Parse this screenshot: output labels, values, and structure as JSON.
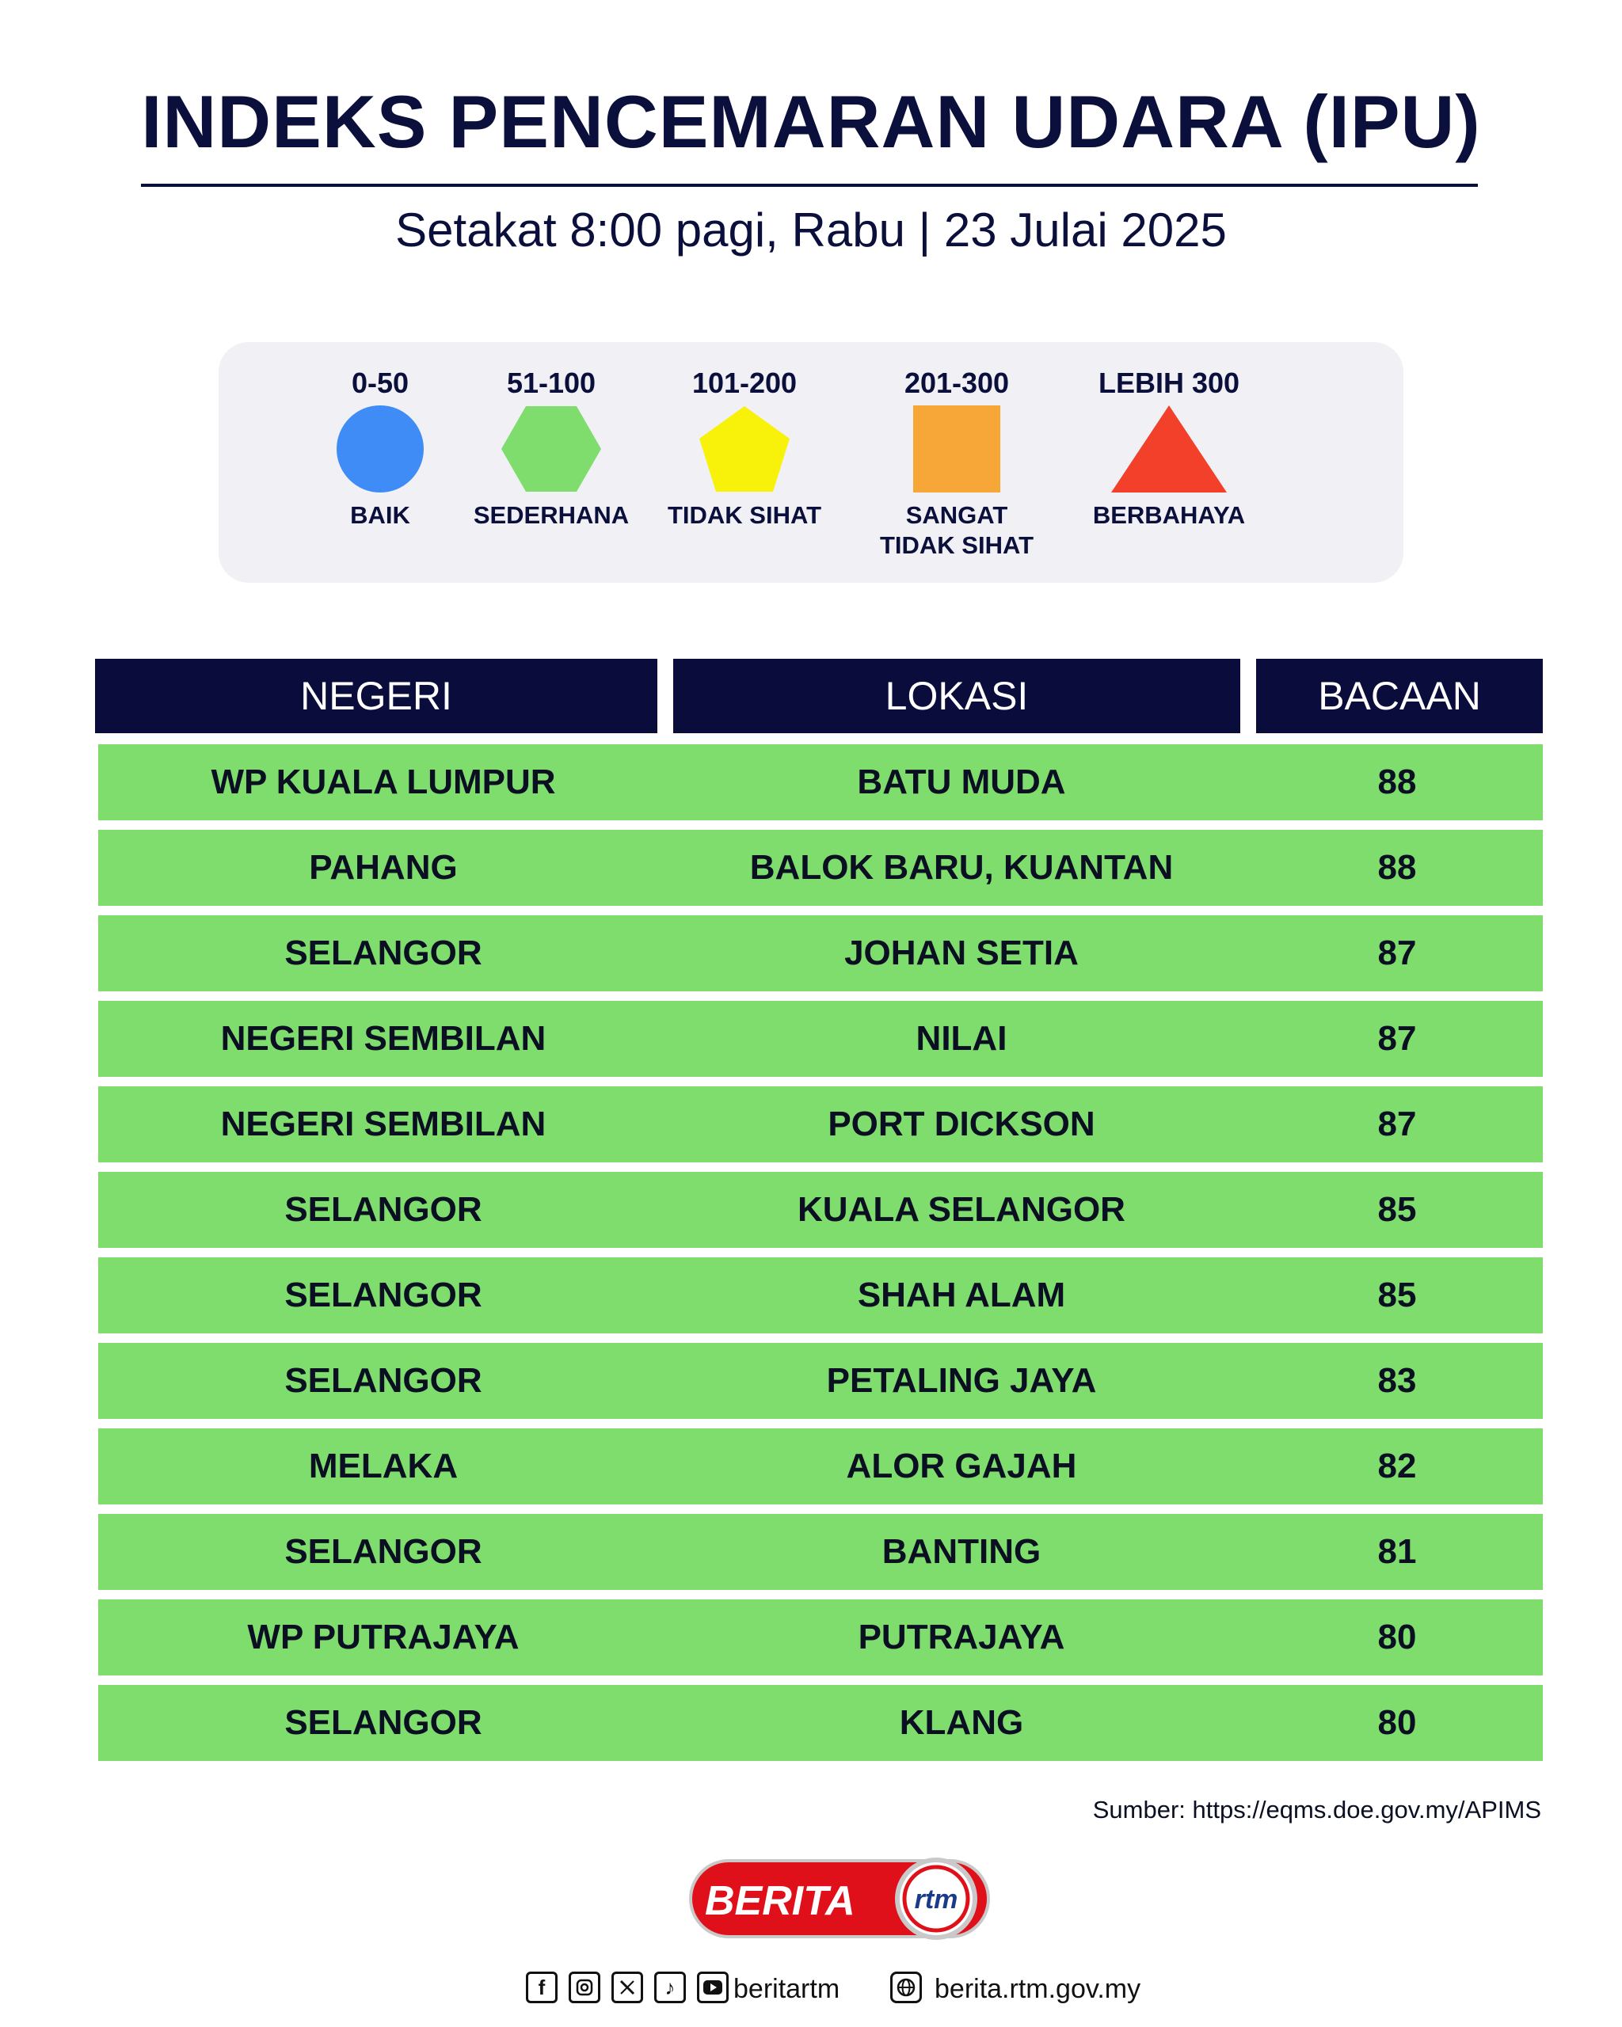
{
  "header": {
    "title": "INDEKS PENCEMARAN UDARA (IPU)",
    "subtitle": "Setakat 8:00 pagi, Rabu | 23 Julai 2025"
  },
  "legend": [
    {
      "range": "0-50",
      "label": "BAIK",
      "shape": "circle",
      "color": "#3f8cf6"
    },
    {
      "range": "51-100",
      "label": "SEDERHANA",
      "shape": "hexagon",
      "color": "#7fdd6e"
    },
    {
      "range": "101-200",
      "label": "TIDAK SIHAT",
      "shape": "pentagon",
      "color": "#f8f20a"
    },
    {
      "range": "201-300",
      "label": "SANGAT TIDAK SIHAT",
      "label_line1": "SANGAT",
      "label_line2": "TIDAK SIHAT",
      "shape": "square",
      "color": "#f7a737"
    },
    {
      "range": "LEBIH 300",
      "label": "BERBAHAYA",
      "shape": "triangle",
      "color": "#f2402a"
    }
  ],
  "table": {
    "headers": [
      "NEGERI",
      "LOKASI",
      "BACAAN"
    ],
    "rows": [
      {
        "negeri": "WP KUALA LUMPUR",
        "lokasi": "BATU MUDA",
        "bacaan": "88"
      },
      {
        "negeri": "PAHANG",
        "lokasi": "BALOK BARU, KUANTAN",
        "bacaan": "88"
      },
      {
        "negeri": "SELANGOR",
        "lokasi": "JOHAN SETIA",
        "bacaan": "87"
      },
      {
        "negeri": "NEGERI SEMBILAN",
        "lokasi": "NILAI",
        "bacaan": "87"
      },
      {
        "negeri": "NEGERI SEMBILAN",
        "lokasi": "PORT DICKSON",
        "bacaan": "87"
      },
      {
        "negeri": "SELANGOR",
        "lokasi": "KUALA SELANGOR",
        "bacaan": "85"
      },
      {
        "negeri": "SELANGOR",
        "lokasi": "SHAH ALAM",
        "bacaan": "85"
      },
      {
        "negeri": "SELANGOR",
        "lokasi": "PETALING JAYA",
        "bacaan": "83"
      },
      {
        "negeri": "MELAKA",
        "lokasi": "ALOR GAJAH",
        "bacaan": "82"
      },
      {
        "negeri": "SELANGOR",
        "lokasi": "BANTING",
        "bacaan": "81"
      },
      {
        "negeri": "WP PUTRAJAYA",
        "lokasi": "PUTRAJAYA",
        "bacaan": "80"
      },
      {
        "negeri": "SELANGOR",
        "lokasi": "KLANG",
        "bacaan": "80"
      }
    ]
  },
  "source": "Sumber: https://eqms.doe.gov.my/APIMS",
  "logo": {
    "text": "BERITA",
    "sub": "rtm"
  },
  "footer": {
    "social_icons": [
      "facebook-icon",
      "instagram-icon",
      "x-icon",
      "tiktok-icon",
      "youtube-icon"
    ],
    "social_handle": "beritartm",
    "website": "berita.rtm.gov.my"
  },
  "colors": {
    "navy": "#0a0d3c",
    "row_green": "#7fdd6e",
    "legend_bg": "#f0f0f5"
  }
}
